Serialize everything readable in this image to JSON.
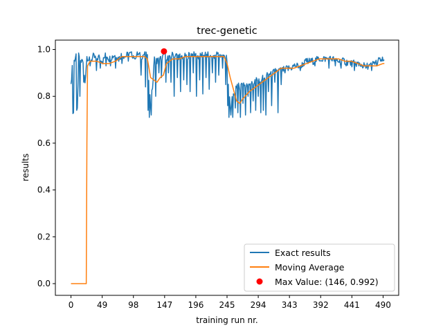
{
  "chart_data": {
    "type": "line",
    "title": "trec-genetic",
    "xlabel": "training run nr.",
    "ylabel": "results",
    "xlim": [
      -24.5,
      514.5
    ],
    "ylim": [
      -0.05,
      1.04
    ],
    "xticks": [
      0,
      49,
      98,
      147,
      196,
      245,
      294,
      343,
      392,
      441,
      490
    ],
    "yticks": [
      0.0,
      0.2,
      0.4,
      0.6,
      0.8,
      1.0
    ],
    "ytick_labels": [
      "0.0",
      "0.2",
      "0.4",
      "0.6",
      "0.8",
      "1.0"
    ],
    "grid": false,
    "legend_position": "lower-right",
    "series": [
      {
        "name": "Exact results",
        "color": "#1f77b4",
        "kind": "noisy",
        "anchors": [
          [
            0,
            0.84
          ],
          [
            2,
            0.93
          ],
          [
            3,
            0.73
          ],
          [
            5,
            0.95
          ],
          [
            8,
            0.98
          ],
          [
            10,
            0.74
          ],
          [
            12,
            0.97
          ],
          [
            15,
            0.94
          ],
          [
            18,
            0.96
          ],
          [
            22,
            0.86
          ],
          [
            25,
            0.97
          ],
          [
            30,
            0.95
          ],
          [
            35,
            0.97
          ],
          [
            40,
            0.96
          ],
          [
            45,
            0.97
          ],
          [
            50,
            0.95
          ],
          [
            55,
            0.98
          ],
          [
            60,
            0.96
          ],
          [
            65,
            0.97
          ],
          [
            70,
            0.98
          ],
          [
            75,
            0.96
          ],
          [
            80,
            0.98
          ],
          [
            85,
            0.97
          ],
          [
            90,
            0.98
          ],
          [
            95,
            0.98
          ],
          [
            100,
            0.97
          ],
          [
            105,
            0.98
          ],
          [
            110,
            0.97
          ],
          [
            115,
            0.98
          ],
          [
            120,
            0.97
          ],
          [
            122,
            0.88
          ],
          [
            125,
            0.76
          ],
          [
            128,
            0.84
          ],
          [
            131,
            0.96
          ],
          [
            135,
            0.95
          ],
          [
            140,
            0.96
          ],
          [
            145,
            0.97
          ],
          [
            146,
            0.992
          ],
          [
            150,
            0.97
          ],
          [
            155,
            0.96
          ],
          [
            160,
            0.98
          ],
          [
            170,
            0.97
          ],
          [
            180,
            0.97
          ],
          [
            190,
            0.98
          ],
          [
            200,
            0.97
          ],
          [
            210,
            0.98
          ],
          [
            220,
            0.97
          ],
          [
            230,
            0.98
          ],
          [
            240,
            0.97
          ],
          [
            244,
            0.98
          ],
          [
            247,
            0.85
          ],
          [
            250,
            0.76
          ],
          [
            255,
            0.8
          ],
          [
            260,
            0.85
          ],
          [
            265,
            0.84
          ],
          [
            270,
            0.86
          ],
          [
            275,
            0.84
          ],
          [
            280,
            0.86
          ],
          [
            285,
            0.85
          ],
          [
            290,
            0.87
          ],
          [
            295,
            0.86
          ],
          [
            300,
            0.88
          ],
          [
            305,
            0.87
          ],
          [
            310,
            0.9
          ],
          [
            315,
            0.89
          ],
          [
            320,
            0.91
          ],
          [
            330,
            0.91
          ],
          [
            340,
            0.92
          ],
          [
            345,
            0.92
          ],
          [
            350,
            0.93
          ],
          [
            360,
            0.93
          ],
          [
            370,
            0.95
          ],
          [
            380,
            0.95
          ],
          [
            390,
            0.96
          ],
          [
            400,
            0.96
          ],
          [
            410,
            0.96
          ],
          [
            420,
            0.95
          ],
          [
            430,
            0.95
          ],
          [
            440,
            0.94
          ],
          [
            450,
            0.94
          ],
          [
            460,
            0.93
          ],
          [
            470,
            0.93
          ],
          [
            480,
            0.95
          ],
          [
            490,
            0.96
          ],
          [
            492,
            0.95
          ]
        ],
        "dips": [
          [
            4,
            0.73
          ],
          [
            9,
            0.74
          ],
          [
            14,
            0.8
          ],
          [
            20,
            0.86
          ],
          [
            30,
            0.93
          ],
          [
            40,
            0.91
          ],
          [
            46,
            0.92
          ],
          [
            55,
            0.93
          ],
          [
            62,
            0.93
          ],
          [
            70,
            0.92
          ],
          [
            80,
            0.94
          ],
          [
            90,
            0.95
          ],
          [
            100,
            0.96
          ],
          [
            110,
            0.89
          ],
          [
            117,
            0.84
          ],
          [
            121,
            0.74
          ],
          [
            123,
            0.71
          ],
          [
            126,
            0.72
          ],
          [
            129,
            0.87
          ],
          [
            133,
            0.8
          ],
          [
            138,
            0.9
          ],
          [
            142,
            0.88
          ],
          [
            149,
            0.86
          ],
          [
            153,
            0.9
          ],
          [
            157,
            0.86
          ],
          [
            162,
            0.8
          ],
          [
            167,
            0.88
          ],
          [
            172,
            0.82
          ],
          [
            177,
            0.87
          ],
          [
            182,
            0.85
          ],
          [
            187,
            0.82
          ],
          [
            192,
            0.9
          ],
          [
            197,
            0.8
          ],
          [
            202,
            0.87
          ],
          [
            207,
            0.81
          ],
          [
            212,
            0.88
          ],
          [
            217,
            0.83
          ],
          [
            222,
            0.9
          ],
          [
            227,
            0.86
          ],
          [
            232,
            0.89
          ],
          [
            238,
            0.92
          ],
          [
            243,
            0.85
          ],
          [
            246,
            0.76
          ],
          [
            248,
            0.71
          ],
          [
            251,
            0.72
          ],
          [
            254,
            0.71
          ],
          [
            258,
            0.75
          ],
          [
            262,
            0.73
          ],
          [
            266,
            0.71
          ],
          [
            270,
            0.77
          ],
          [
            274,
            0.72
          ],
          [
            278,
            0.8
          ],
          [
            282,
            0.73
          ],
          [
            286,
            0.78
          ],
          [
            290,
            0.74
          ],
          [
            294,
            0.8
          ],
          [
            298,
            0.73
          ],
          [
            302,
            0.74
          ],
          [
            306,
            0.72
          ],
          [
            310,
            0.82
          ],
          [
            315,
            0.76
          ],
          [
            320,
            0.86
          ],
          [
            325,
            0.73
          ],
          [
            330,
            0.85
          ],
          [
            336,
            0.9
          ],
          [
            341,
            0.91
          ],
          [
            352,
            0.93
          ],
          [
            360,
            0.91
          ],
          [
            372,
            0.94
          ],
          [
            383,
            0.93
          ],
          [
            395,
            0.95
          ],
          [
            405,
            0.92
          ],
          [
            415,
            0.93
          ],
          [
            424,
            0.92
          ],
          [
            432,
            0.93
          ],
          [
            445,
            0.91
          ],
          [
            452,
            0.93
          ],
          [
            463,
            0.92
          ],
          [
            472,
            0.91
          ],
          [
            480,
            0.93
          ],
          [
            488,
            0.95
          ]
        ]
      },
      {
        "name": "Moving Average",
        "color": "#ff7f0e",
        "kind": "line",
        "points": [
          [
            0,
            0.0
          ],
          [
            23,
            0.0
          ],
          [
            24,
            0.0
          ],
          [
            25,
            0.6
          ],
          [
            26,
            0.93
          ],
          [
            30,
            0.95
          ],
          [
            40,
            0.95
          ],
          [
            50,
            0.94
          ],
          [
            60,
            0.94
          ],
          [
            70,
            0.95
          ],
          [
            80,
            0.97
          ],
          [
            90,
            0.97
          ],
          [
            100,
            0.97
          ],
          [
            110,
            0.97
          ],
          [
            115,
            0.97
          ],
          [
            120,
            0.96
          ],
          [
            125,
            0.88
          ],
          [
            130,
            0.87
          ],
          [
            135,
            0.86
          ],
          [
            140,
            0.88
          ],
          [
            145,
            0.89
          ],
          [
            150,
            0.94
          ],
          [
            160,
            0.96
          ],
          [
            170,
            0.96
          ],
          [
            180,
            0.97
          ],
          [
            190,
            0.97
          ],
          [
            200,
            0.97
          ],
          [
            210,
            0.97
          ],
          [
            220,
            0.97
          ],
          [
            230,
            0.97
          ],
          [
            240,
            0.97
          ],
          [
            245,
            0.94
          ],
          [
            250,
            0.88
          ],
          [
            255,
            0.83
          ],
          [
            260,
            0.78
          ],
          [
            265,
            0.77
          ],
          [
            270,
            0.79
          ],
          [
            280,
            0.82
          ],
          [
            290,
            0.84
          ],
          [
            300,
            0.86
          ],
          [
            310,
            0.88
          ],
          [
            320,
            0.9
          ],
          [
            330,
            0.92
          ],
          [
            340,
            0.92
          ],
          [
            350,
            0.92
          ],
          [
            360,
            0.93
          ],
          [
            370,
            0.94
          ],
          [
            380,
            0.95
          ],
          [
            390,
            0.96
          ],
          [
            400,
            0.96
          ],
          [
            410,
            0.96
          ],
          [
            420,
            0.96
          ],
          [
            430,
            0.95
          ],
          [
            440,
            0.95
          ],
          [
            450,
            0.94
          ],
          [
            460,
            0.93
          ],
          [
            470,
            0.93
          ],
          [
            480,
            0.93
          ],
          [
            490,
            0.94
          ],
          [
            492,
            0.94
          ]
        ]
      },
      {
        "name": "Max Value: (146, 0.992)",
        "color": "#ff0000",
        "kind": "point",
        "points": [
          [
            146,
            0.992
          ]
        ]
      }
    ]
  }
}
